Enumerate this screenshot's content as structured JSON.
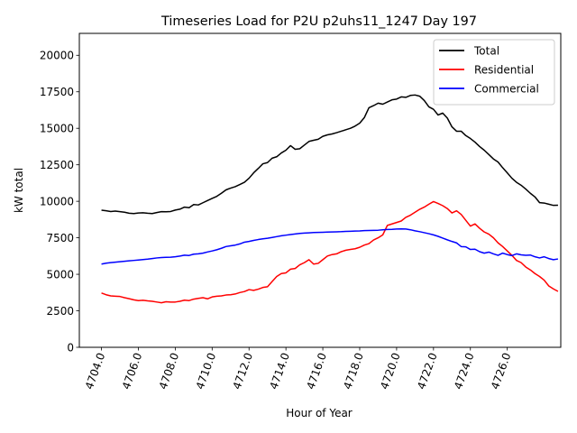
{
  "chart_data": {
    "type": "line",
    "title": "Timeseries Load for P2U p2uhs11_1247  Day 197",
    "xlabel": "Hour of Year",
    "ylabel": "kW total",
    "xlim": [
      4702.8,
      4728.9
    ],
    "ylim": [
      0,
      21500
    ],
    "xticks": [
      4704,
      4706,
      4708,
      4710,
      4712,
      4714,
      4716,
      4718,
      4720,
      4722,
      4724,
      4726
    ],
    "xtick_labels": [
      "4704.0",
      "4706.0",
      "4708.0",
      "4710.0",
      "4712.0",
      "4714.0",
      "4716.0",
      "4718.0",
      "4720.0",
      "4722.0",
      "4724.0",
      "4726.0"
    ],
    "yticks": [
      0,
      2500,
      5000,
      7500,
      10000,
      12500,
      15000,
      17500,
      20000
    ],
    "ytick_labels": [
      "0",
      "2500",
      "5000",
      "7500",
      "10000",
      "12500",
      "15000",
      "17500",
      "20000"
    ],
    "grid": false,
    "legend_position": "top-right",
    "x_start": 4704.0,
    "x_step": 0.25,
    "series": [
      {
        "name": "Total",
        "color": "#000000",
        "values": [
          9390,
          9350,
          9300,
          9330,
          9290,
          9250,
          9180,
          9160,
          9200,
          9210,
          9180,
          9160,
          9230,
          9290,
          9280,
          9300,
          9400,
          9460,
          9600,
          9560,
          9780,
          9750,
          9900,
          10050,
          10200,
          10340,
          10550,
          10780,
          10900,
          11000,
          11150,
          11300,
          11580,
          11950,
          12250,
          12570,
          12650,
          12950,
          13050,
          13310,
          13500,
          13810,
          13560,
          13600,
          13850,
          14100,
          14180,
          14250,
          14450,
          14550,
          14610,
          14700,
          14800,
          14900,
          15000,
          15150,
          15350,
          15730,
          16410,
          16550,
          16720,
          16650,
          16800,
          16950,
          17000,
          17150,
          17120,
          17250,
          17280,
          17200,
          16900,
          16470,
          16300,
          15910,
          16040,
          15700,
          15100,
          14800,
          14800,
          14500,
          14300,
          14050,
          13750,
          13500,
          13200,
          12900,
          12690,
          12300,
          11950,
          11580,
          11300,
          11100,
          10840,
          10550,
          10300,
          9910,
          9880,
          9800,
          9720,
          9730
        ]
      },
      {
        "name": "Residential",
        "color": "#ff0000",
        "values": [
          3720,
          3600,
          3520,
          3500,
          3480,
          3400,
          3330,
          3250,
          3200,
          3220,
          3180,
          3150,
          3100,
          3050,
          3120,
          3100,
          3100,
          3150,
          3230,
          3200,
          3300,
          3350,
          3400,
          3320,
          3450,
          3500,
          3520,
          3580,
          3600,
          3650,
          3750,
          3820,
          3950,
          3900,
          3980,
          4100,
          4150,
          4500,
          4850,
          5050,
          5100,
          5350,
          5400,
          5650,
          5800,
          6000,
          5700,
          5750,
          6000,
          6250,
          6350,
          6400,
          6550,
          6650,
          6700,
          6750,
          6850,
          7000,
          7100,
          7350,
          7500,
          7700,
          8350,
          8450,
          8550,
          8650,
          8900,
          9050,
          9250,
          9450,
          9600,
          9800,
          9980,
          9850,
          9700,
          9500,
          9200,
          9350,
          9100,
          8700,
          8300,
          8450,
          8150,
          7900,
          7750,
          7500,
          7150,
          6900,
          6600,
          6300,
          5950,
          5800,
          5500,
          5300,
          5050,
          4850,
          4600,
          4200,
          4000,
          3830
        ]
      },
      {
        "name": "Commercial",
        "color": "#0000ff",
        "values": [
          5700,
          5760,
          5800,
          5830,
          5860,
          5890,
          5920,
          5950,
          5980,
          6010,
          6040,
          6080,
          6120,
          6150,
          6160,
          6170,
          6200,
          6250,
          6310,
          6290,
          6380,
          6400,
          6450,
          6530,
          6600,
          6680,
          6780,
          6900,
          6950,
          7000,
          7080,
          7200,
          7250,
          7320,
          7380,
          7430,
          7470,
          7520,
          7580,
          7640,
          7680,
          7720,
          7760,
          7800,
          7820,
          7840,
          7860,
          7870,
          7880,
          7890,
          7900,
          7910,
          7920,
          7940,
          7950,
          7960,
          7970,
          7990,
          8000,
          8010,
          8020,
          8050,
          8070,
          8080,
          8100,
          8110,
          8100,
          8050,
          7980,
          7920,
          7850,
          7780,
          7700,
          7600,
          7480,
          7360,
          7250,
          7150,
          6900,
          6880,
          6700,
          6720,
          6550,
          6450,
          6520,
          6400,
          6300,
          6450,
          6350,
          6280,
          6400,
          6330,
          6300,
          6320,
          6200,
          6120,
          6200,
          6080,
          6000,
          6050
        ]
      }
    ]
  }
}
